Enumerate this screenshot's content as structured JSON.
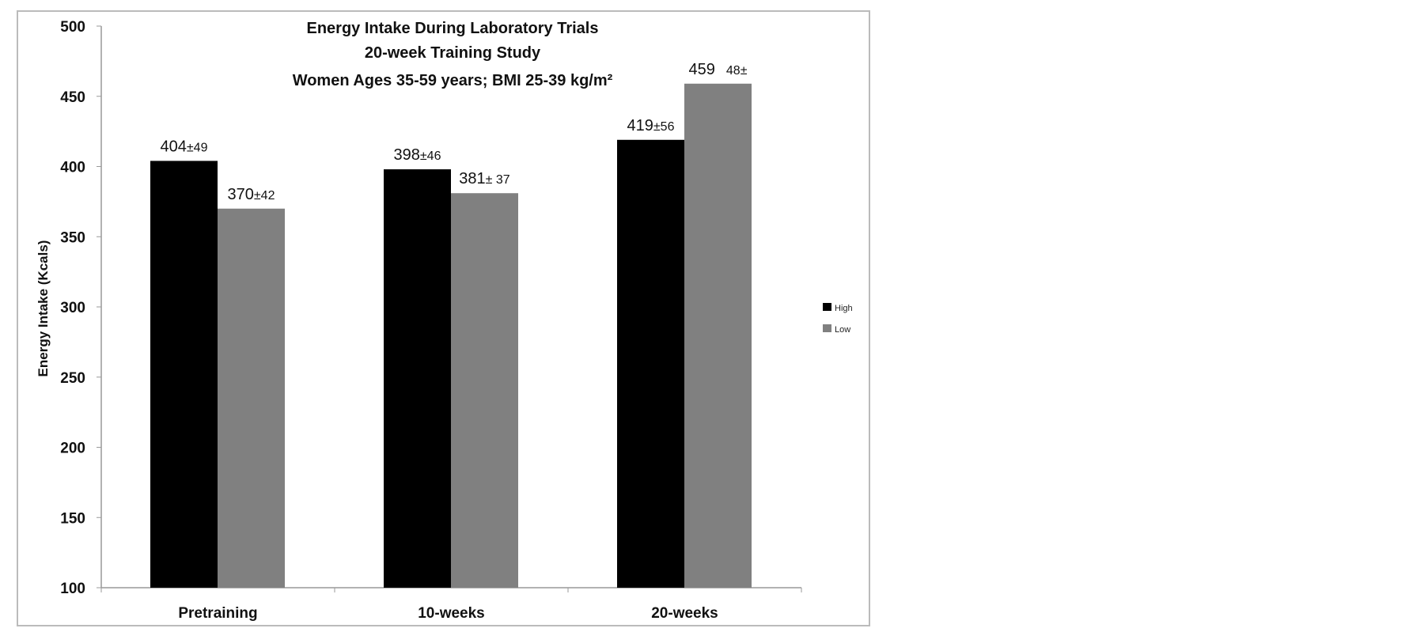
{
  "chart_data": {
    "type": "bar",
    "title": [
      "Energy Intake During Laboratory Trials",
      "20-week Training Study",
      "Women Ages 35-59 years;  BMI 25-39 kg/m²"
    ],
    "xlabel": "",
    "ylabel": "Energy Intake (Kcals)",
    "ylim": [
      100,
      500
    ],
    "yticks": [
      100,
      150,
      200,
      250,
      300,
      350,
      400,
      450,
      500
    ],
    "categories": [
      "Pretraining",
      "10-weeks",
      "20-weeks"
    ],
    "series": [
      {
        "name": "High",
        "color": "#000000",
        "values": [
          404,
          398,
          419
        ],
        "labels": [
          [
            "404",
            "±49"
          ],
          [
            "398",
            "±46"
          ],
          [
            "419",
            "±56"
          ]
        ]
      },
      {
        "name": "Low",
        "color": "#808080",
        "values": [
          370,
          381,
          459
        ],
        "labels": [
          [
            "370",
            "±42"
          ],
          [
            "381",
            "± 37"
          ],
          [
            "459",
            "48±"
          ]
        ]
      }
    ],
    "legend_position": "right",
    "grid": false
  }
}
